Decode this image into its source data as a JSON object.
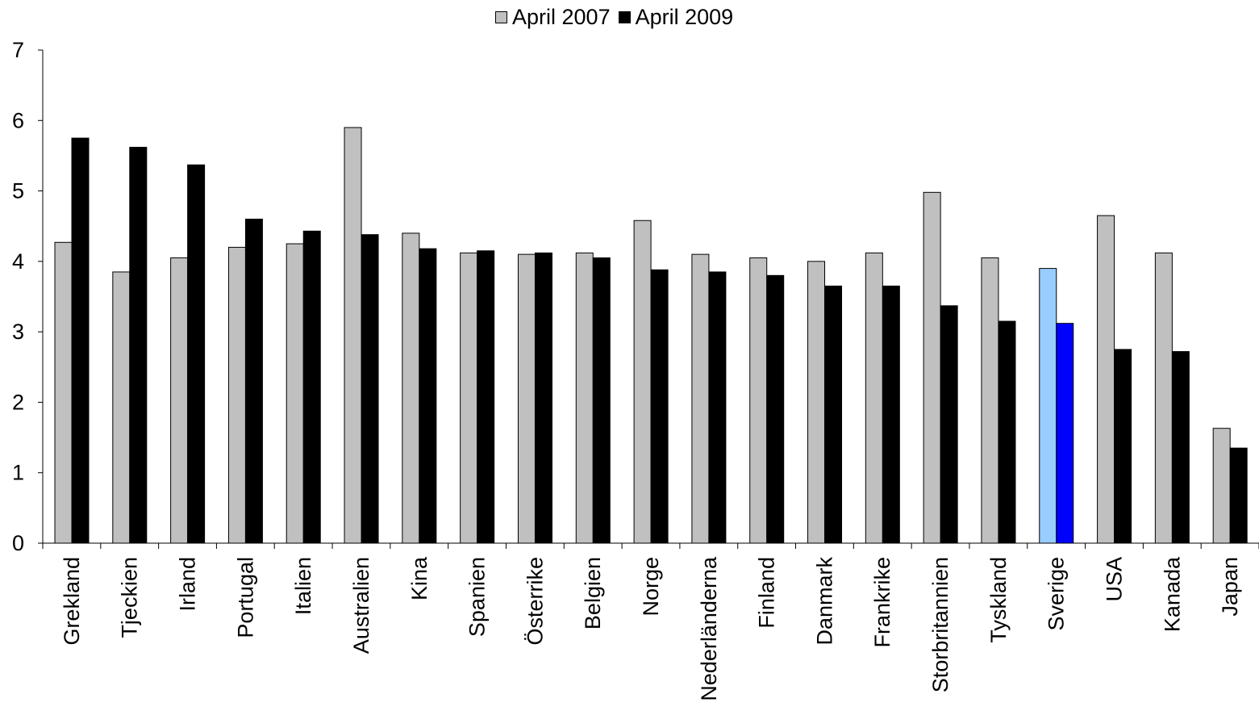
{
  "chart_data": {
    "type": "bar",
    "title": "",
    "xlabel": "",
    "ylabel": "",
    "ylim": [
      0,
      7
    ],
    "yticks": [
      0,
      1,
      2,
      3,
      4,
      5,
      6,
      7
    ],
    "grid": false,
    "legend_position": "top-center",
    "categories": [
      "Grekland",
      "Tjeckien",
      "Irland",
      "Portugal",
      "Italien",
      "Australien",
      "Kina",
      "Spanien",
      "Österrike",
      "Belgien",
      "Norge",
      "Nederländerna",
      "Finland",
      "Danmark",
      "Frankrike",
      "Storbritannien",
      "Tyskland",
      "Sverige",
      "USA",
      "Kanada",
      "Japan"
    ],
    "series": [
      {
        "name": "April 2007",
        "color": "#c0c0c0",
        "values": [
          4.27,
          3.85,
          4.05,
          4.2,
          4.25,
          5.9,
          4.4,
          4.12,
          4.1,
          4.12,
          4.58,
          4.1,
          4.05,
          4.0,
          4.12,
          4.98,
          4.05,
          3.9,
          4.65,
          4.12,
          1.63
        ]
      },
      {
        "name": "April 2009",
        "color": "#000000",
        "values": [
          5.75,
          5.62,
          5.37,
          4.6,
          4.43,
          4.38,
          4.18,
          4.15,
          4.12,
          4.05,
          3.88,
          3.85,
          3.8,
          3.65,
          3.65,
          3.37,
          3.15,
          3.12,
          2.75,
          2.72,
          1.35
        ]
      }
    ],
    "highlight": {
      "category": "Sverige",
      "colors": [
        "#99ccff",
        "#0000ff"
      ]
    }
  }
}
